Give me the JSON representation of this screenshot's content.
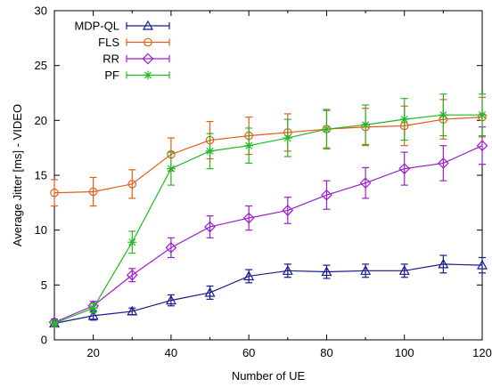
{
  "chart_data": {
    "type": "line",
    "title": "",
    "xlabel": "Number of UE",
    "ylabel": "Average Jitter [ms] - VIDEO",
    "xlim": [
      10,
      120
    ],
    "ylim": [
      0,
      30
    ],
    "xticks": [
      20,
      40,
      60,
      80,
      100,
      120
    ],
    "yticks": [
      0,
      5,
      10,
      15,
      20,
      25,
      30
    ],
    "grid": false,
    "legend_position": "top-left",
    "x": [
      10,
      20,
      30,
      40,
      50,
      60,
      70,
      80,
      90,
      100,
      110,
      120
    ],
    "series": [
      {
        "name": "MDP-QL",
        "color": "#1a1a8c",
        "marker": "triangle",
        "values": [
          1.5,
          2.2,
          2.6,
          3.6,
          4.3,
          5.8,
          6.3,
          6.2,
          6.3,
          6.3,
          6.9,
          6.8
        ],
        "errors": [
          0.3,
          0.4,
          0.3,
          0.5,
          0.6,
          0.6,
          0.6,
          0.6,
          0.6,
          0.6,
          0.8,
          0.7
        ]
      },
      {
        "name": "FLS",
        "color": "#e65c1a",
        "marker": "circle",
        "values": [
          13.4,
          13.5,
          14.2,
          16.9,
          18.2,
          18.6,
          18.9,
          19.2,
          19.4,
          19.5,
          20.1,
          20.3
        ],
        "errors": [
          1.2,
          1.3,
          1.3,
          1.5,
          1.7,
          1.7,
          1.7,
          1.7,
          1.7,
          1.8,
          1.8,
          1.8
        ]
      },
      {
        "name": "RR",
        "color": "#9b1fcc",
        "marker": "diamond",
        "values": [
          1.6,
          3.1,
          5.9,
          8.4,
          10.3,
          11.1,
          11.8,
          13.2,
          14.3,
          15.6,
          16.1,
          17.7
        ],
        "errors": [
          0.3,
          0.4,
          0.6,
          0.9,
          1.0,
          1.1,
          1.2,
          1.3,
          1.4,
          1.5,
          1.6,
          1.7
        ]
      },
      {
        "name": "PF",
        "color": "#22b822",
        "marker": "star",
        "values": [
          1.5,
          2.9,
          8.9,
          15.6,
          17.2,
          17.7,
          18.4,
          19.2,
          19.6,
          20.1,
          20.5,
          20.5
        ],
        "errors": [
          0.3,
          0.4,
          1.0,
          1.5,
          1.6,
          1.6,
          1.7,
          1.8,
          1.8,
          1.9,
          1.9,
          1.9
        ]
      }
    ]
  }
}
